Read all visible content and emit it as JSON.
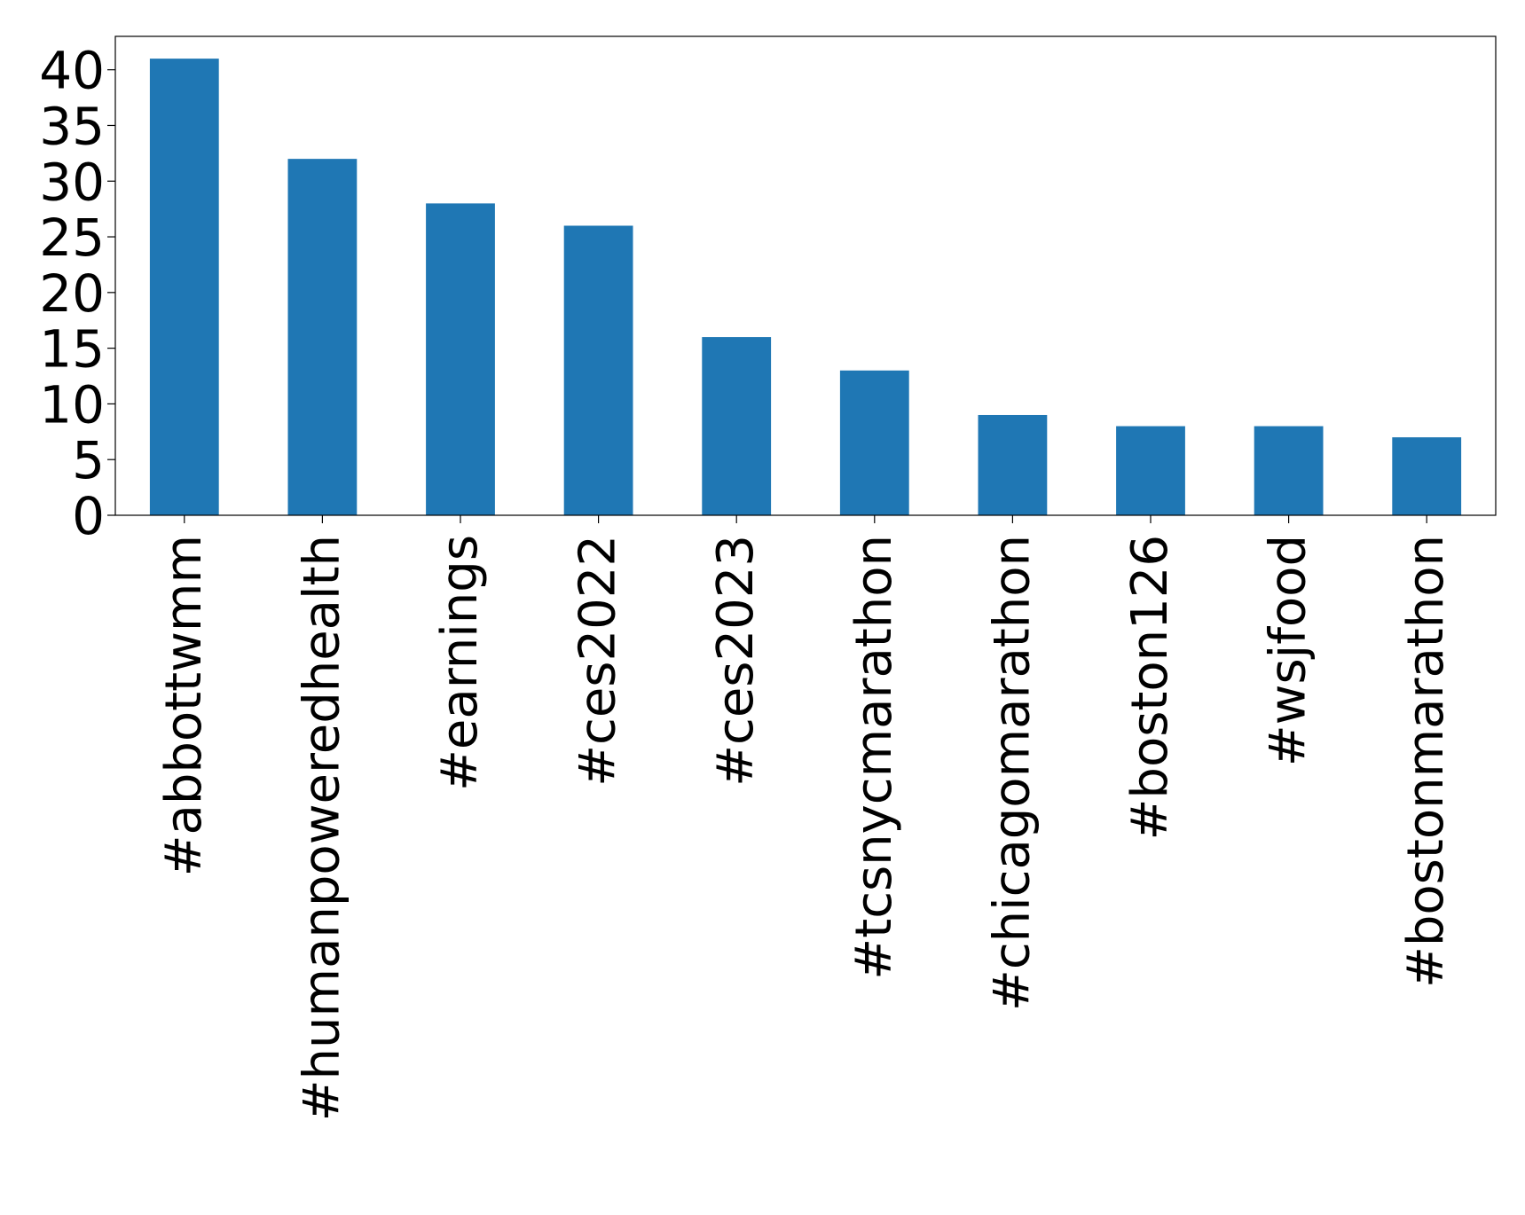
{
  "chart_data": {
    "type": "bar",
    "title": "",
    "xlabel": "",
    "ylabel": "",
    "categories": [
      "#abbottwmm",
      "#humanpoweredhealth",
      "#earnings",
      "#ces2022",
      "#ces2023",
      "#tcsnycmarathon",
      "#chicagomarathon",
      "#boston126",
      "#wsjfood",
      "#bostonmarathon"
    ],
    "values": [
      41,
      32,
      28,
      26,
      16,
      13,
      9,
      8,
      8,
      7
    ],
    "ylim": [
      0,
      43
    ],
    "yticks": [
      0,
      5,
      10,
      15,
      20,
      25,
      30,
      35,
      40
    ],
    "grid": false,
    "legend": "none",
    "bar_color": "#1f77b4"
  }
}
